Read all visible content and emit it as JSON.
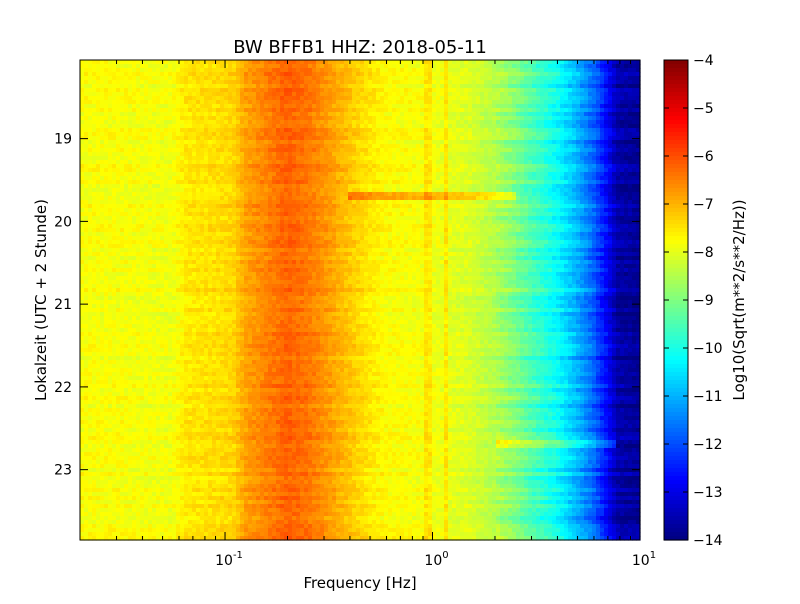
{
  "chart_data": {
    "type": "heatmap",
    "title": "BW BFFB1 HHZ: 2018-05-11",
    "xlabel": "Frequency [Hz]",
    "ylabel": "Lokalzeit (UTC + 2 Stunde)",
    "xscale": "log",
    "xlim": [
      0.02,
      10
    ],
    "ylim": [
      18.05,
      23.85
    ],
    "y_inverted": true,
    "x_ticks": [
      {
        "base": "10",
        "exp": "-1",
        "value": 0.1
      },
      {
        "base": "10",
        "exp": "0",
        "value": 1
      },
      {
        "base": "10",
        "exp": "1",
        "value": 10
      }
    ],
    "y_ticks": [
      {
        "label": "19",
        "value": 19
      },
      {
        "label": "20",
        "value": 20
      },
      {
        "label": "21",
        "value": 21
      },
      {
        "label": "22",
        "value": 22
      },
      {
        "label": "23",
        "value": 23
      }
    ],
    "colorbar": {
      "label": "Log10(Sqrt(m**2/s**2/Hz))",
      "min": -14,
      "max": -4,
      "ticks": [
        "-4",
        "-5",
        "-6",
        "-7",
        "-8",
        "-9",
        "-10",
        "-11",
        "-12",
        "-13",
        "-14"
      ]
    },
    "colormap": "jet",
    "psd_profile": {
      "freq_hz": [
        0.02,
        0.03,
        0.04,
        0.055,
        0.065,
        0.09,
        0.11,
        0.125,
        0.15,
        0.2,
        0.25,
        0.3,
        0.4,
        0.5,
        0.6,
        0.8,
        1.0,
        1.5,
        2.0,
        2.5,
        3.0,
        4.0,
        5.0,
        6.0,
        7.0,
        7.8,
        10.0
      ],
      "log10_amplitude": [
        -7.8,
        -7.8,
        -7.85,
        -7.9,
        -7.55,
        -7.45,
        -7.35,
        -6.85,
        -6.6,
        -6.2,
        -6.4,
        -6.7,
        -7.2,
        -7.55,
        -7.75,
        -7.8,
        -7.9,
        -8.1,
        -8.5,
        -9.0,
        -9.5,
        -10.2,
        -11.0,
        -11.8,
        -12.8,
        -13.6,
        -13.8
      ]
    },
    "features": [
      {
        "type": "horizontal_band",
        "time": 19.68,
        "fmin": 0.4,
        "fmax": 2.5,
        "delta": 0.9
      },
      {
        "type": "horizontal_band",
        "time": 22.68,
        "fmin": 2.0,
        "fmax": 7.5,
        "delta": 1.0
      },
      {
        "type": "vertical_line",
        "freq": 0.95,
        "delta": 0.35
      },
      {
        "type": "vertical_line",
        "freq": 1.18,
        "delta": 0.45
      }
    ]
  }
}
